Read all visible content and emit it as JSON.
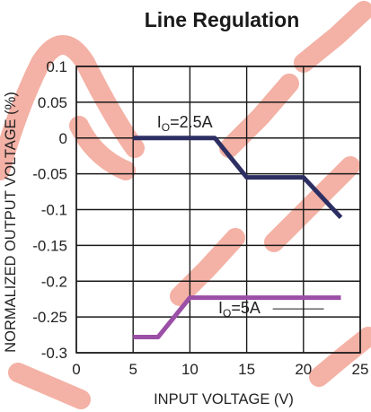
{
  "chart_data": {
    "type": "line",
    "title": "Line Regulation",
    "xlabel": "INPUT VOLTAGE (V)",
    "ylabel": "NORMALIZED OUTPUT VOLTAGE (%)",
    "xlim": [
      0,
      25
    ],
    "ylim": [
      -0.3,
      0.1
    ],
    "x_ticks": [
      0,
      5,
      10,
      15,
      20,
      25
    ],
    "y_ticks": [
      0.1,
      0.05,
      0,
      -0.05,
      -0.1,
      -0.15,
      -0.2,
      -0.25,
      -0.3
    ],
    "x_tick_labels": [
      "0",
      "5",
      "10",
      "15",
      "20",
      "25"
    ],
    "y_tick_labels": [
      "0.1",
      "0.05",
      "0",
      "-0.05",
      "-0.1",
      "-0.15",
      "-0.2",
      "-0.25",
      "-0.3"
    ],
    "grid": true,
    "series": [
      {
        "name": "I_O=2.5A",
        "label_main": "I",
        "label_sub": "O",
        "label_rest": "=2.5A",
        "color": "#2d2f63",
        "points": [
          {
            "x": 5,
            "y": 0
          },
          {
            "x": 12.2,
            "y": 0
          },
          {
            "x": 15,
            "y": -0.055
          },
          {
            "x": 20,
            "y": -0.055
          },
          {
            "x": 23.3,
            "y": -0.111
          }
        ]
      },
      {
        "name": "I_O=5A",
        "label_main": "I",
        "label_sub": "O",
        "label_rest": "=5A",
        "color": "#9b4fa6",
        "points": [
          {
            "x": 5,
            "y": -0.278
          },
          {
            "x": 7.2,
            "y": -0.278
          },
          {
            "x": 10,
            "y": -0.223
          },
          {
            "x": 23.3,
            "y": -0.223
          }
        ]
      }
    ]
  },
  "watermark": {
    "color": "#f3a99b"
  }
}
